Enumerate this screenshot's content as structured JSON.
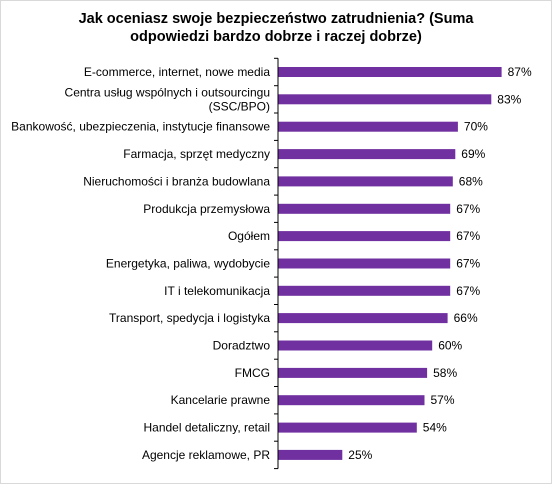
{
  "chart_data": {
    "type": "bar",
    "orientation": "horizontal",
    "title_lines": [
      "Jak oceniasz swoje bezpieczeństwo zatrudnienia? (Suma",
      "odpowiedzi bardzo dobrze i raczej dobrze)"
    ],
    "categories": [
      [
        "E-commerce, internet, nowe media"
      ],
      [
        "Centra usług wspólnych i outsourcingu",
        "(SSC/BPO)"
      ],
      [
        "Bankowość, ubezpieczenia, instytucje finansowe"
      ],
      [
        "Farmacja, sprzęt medyczny"
      ],
      [
        "Nieruchomości i branża budowlana"
      ],
      [
        "Produkcja przemysłowa"
      ],
      [
        "Ogółem"
      ],
      [
        "Energetyka, paliwa, wydobycie"
      ],
      [
        "IT i telekomunikacja"
      ],
      [
        "Transport, spedycja i logistyka"
      ],
      [
        "Doradztwo"
      ],
      [
        "FMCG"
      ],
      [
        "Kancelarie prawne"
      ],
      [
        "Handel detaliczny, retail"
      ],
      [
        "Agencje reklamowe, PR"
      ]
    ],
    "values": [
      87,
      83,
      70,
      69,
      68,
      67,
      67,
      67,
      67,
      66,
      60,
      58,
      57,
      54,
      25
    ],
    "value_labels": [
      "87%",
      "83%",
      "70%",
      "69%",
      "68%",
      "67%",
      "67%",
      "67%",
      "67%",
      "66%",
      "60%",
      "58%",
      "57%",
      "54%",
      "25%"
    ],
    "xlim": [
      0,
      100
    ],
    "bar_color": "#7030a0",
    "axis_color": "#000000",
    "grid": false,
    "legend": "none"
  }
}
